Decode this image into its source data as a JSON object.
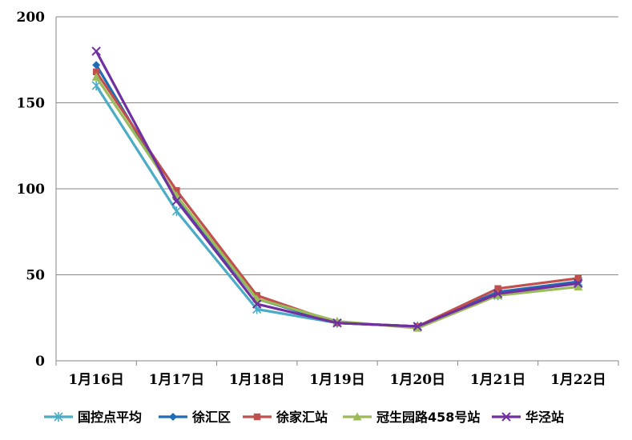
{
  "chart_data": {
    "type": "line",
    "title": "",
    "xlabel": "",
    "ylabel": "",
    "categories": [
      "1月16日",
      "1月17日",
      "1月18日",
      "1月19日",
      "1月20日",
      "1月21日",
      "1月22日"
    ],
    "ylim": [
      0,
      200
    ],
    "yticks": [
      0,
      50,
      100,
      150,
      200
    ],
    "grid": "horizontal",
    "legend_position": "bottom",
    "series": [
      {
        "name": "国控点平均",
        "color": "#4bacc6",
        "marker": "star",
        "values": [
          160,
          87,
          30,
          22,
          20,
          38,
          46
        ]
      },
      {
        "name": "徐汇区",
        "color": "#1f6bb5",
        "marker": "diamond",
        "values": [
          172,
          94,
          36,
          22,
          20,
          40,
          46
        ]
      },
      {
        "name": "徐家汇站",
        "color": "#c0504d",
        "marker": "square",
        "values": [
          168,
          99,
          38,
          22,
          20,
          42,
          48
        ]
      },
      {
        "name": "冠生园路458号站",
        "color": "#9bbb59",
        "marker": "triangle",
        "values": [
          165,
          96,
          36,
          23,
          19,
          38,
          43
        ]
      },
      {
        "name": "华泾站",
        "color": "#7030a0",
        "marker": "x",
        "values": [
          180,
          93,
          33,
          22,
          20,
          39,
          45
        ]
      }
    ]
  }
}
